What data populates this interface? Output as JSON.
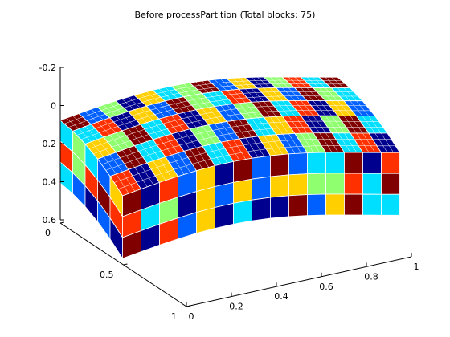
{
  "chart_data": {
    "type": "surface3d",
    "title": "Before processPartition (Total blocks: 75)",
    "x_axis": {
      "ticks": [
        "0",
        "0.2",
        "0.4",
        "0.6",
        "0.8",
        "1"
      ],
      "range": [
        0,
        1
      ]
    },
    "y_axis": {
      "ticks": [
        "0",
        "0.5",
        "1"
      ],
      "range": [
        0,
        1
      ]
    },
    "z_axis": {
      "ticks": [
        "-0.2",
        "0",
        "0.2",
        "0.4",
        "0.6"
      ],
      "range": [
        -0.2,
        0.6
      ],
      "reversed": true
    },
    "total_blocks": 75,
    "colormap": [
      "#00008f",
      "#0060ff",
      "#00dfff",
      "#8fff70",
      "#ffcf00",
      "#ff3000",
      "#800000"
    ],
    "block_grid": {
      "rows": 5,
      "cols": 15
    },
    "block_colors": [
      [
        6,
        1,
        3,
        0,
        4,
        2,
        3,
        6,
        1,
        4,
        0,
        3,
        5,
        2,
        6
      ],
      [
        2,
        5,
        0,
        4,
        1,
        6,
        3,
        2,
        5,
        0,
        4,
        1,
        6,
        3,
        2
      ],
      [
        4,
        3,
        6,
        2,
        5,
        0,
        4,
        1,
        3,
        6,
        2,
        5,
        0,
        4,
        1
      ],
      [
        1,
        6,
        2,
        5,
        0,
        3,
        1,
        6,
        2,
        4,
        5,
        0,
        3,
        6,
        2
      ],
      [
        5,
        0,
        4,
        1,
        6,
        2,
        5,
        0,
        4,
        1,
        3,
        6,
        2,
        5,
        0
      ]
    ]
  }
}
